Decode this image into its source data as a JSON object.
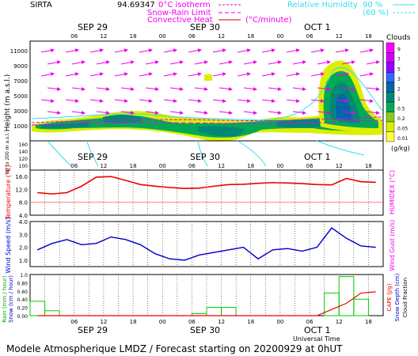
{
  "header": {
    "site": "SIRTA",
    "coords": "94.69347",
    "legend_isotherm": "0°C isotherm",
    "legend_snowrain": "Snow-Rain Limit",
    "legend_convective": "Convective Heat",
    "convective_unit": "(°C/minute)",
    "legend_rh": "Relative Humidity",
    "rh_high": "90 %",
    "rh_low": "(60 %)"
  },
  "dates": [
    "SEP 29",
    "SEP 30",
    "OCT 1"
  ],
  "hour_ticks": [
    "06",
    "12",
    "18",
    "00",
    "06",
    "12",
    "18",
    "00",
    "06",
    "12",
    "18"
  ],
  "clouds_scale": {
    "title": "Clouds",
    "unit": "(g/kg)",
    "levels": [
      "9",
      "7",
      "5",
      "3",
      "2",
      "1",
      "0.5",
      "0.2",
      "0.05",
      "0.01"
    ],
    "colors": [
      "#ff00ff",
      "#cc00ff",
      "#9900ff",
      "#3366ff",
      "#0066aa",
      "#008877",
      "#00aa55",
      "#88cc22",
      "#ddee00",
      "#ffff44"
    ]
  },
  "panel_labels": {
    "height": "Height (m a.s.l.)",
    "upto": "Up to 200 m a.s.l.",
    "temperature": "Temperature (°C)",
    "humidex": "HUMIDEX (°C)",
    "windspeed": "Wind Speed (m/s)",
    "windgust": "Wind Gust (m/s)",
    "rain": "Rain (mm / hour)",
    "snow": "Snow (cm / hour)",
    "cape": "CAPE (J/g)",
    "snowdepth": "Snow Depth (cm)",
    "cloudfrac": "Cloud Fraction",
    "universal_time": "Universal Time"
  },
  "footer": "Modele Atmospherique LMDZ / Forecast starting on 20200929 at 0hUT",
  "chart_data": [
    {
      "type": "heatmap",
      "name": "cloud-height",
      "ylabel": "Height (m a.s.l.)",
      "yticks_upper": [
        "11000",
        "9000",
        "7000",
        "5000",
        "3000",
        "1000"
      ],
      "yticks_lower": [
        "160",
        "140",
        "120",
        "100"
      ]
    },
    {
      "type": "line",
      "name": "temperature",
      "ylabel": "Temperature (°C)",
      "ylim": [
        4,
        18
      ],
      "yticks": [
        "16.0",
        "12.0",
        "8.0",
        "4.0"
      ],
      "x_hours": [
        0,
        3,
        6,
        9,
        12,
        15,
        18,
        21,
        24,
        27,
        30,
        33,
        36,
        39,
        42,
        45,
        48,
        51,
        54,
        57,
        60,
        63,
        66,
        69
      ],
      "series": [
        {
          "values": [
            11.0,
            10.6,
            11.0,
            13.0,
            15.8,
            16.0,
            14.8,
            13.5,
            13.0,
            12.6,
            12.3,
            12.4,
            13.0,
            13.5,
            13.6,
            13.9,
            14.1,
            14.0,
            13.8,
            13.5,
            13.4,
            15.4,
            14.4,
            14.2
          ]
        }
      ]
    },
    {
      "type": "line",
      "name": "wind",
      "ylabel": "Wind Speed (m/s)",
      "ylim": [
        0.5,
        4.0
      ],
      "yticks": [
        "4.0",
        "3.0",
        "2.0",
        "1.0"
      ],
      "x_hours": [
        0,
        3,
        6,
        9,
        12,
        15,
        18,
        21,
        24,
        27,
        30,
        33,
        36,
        39,
        42,
        45,
        48,
        51,
        54,
        57,
        60,
        63,
        66,
        69
      ],
      "series": [
        {
          "values": [
            1.8,
            2.3,
            2.6,
            2.2,
            2.3,
            2.8,
            2.6,
            2.2,
            1.5,
            1.1,
            1.0,
            1.4,
            1.6,
            1.8,
            2.0,
            1.1,
            1.8,
            1.9,
            1.7,
            2.0,
            3.5,
            2.7,
            2.1,
            2.0
          ]
        }
      ]
    },
    {
      "type": "bar",
      "name": "precipitation",
      "ylabel": "Rain (mm / hour)",
      "ylim": [
        0,
        1.0
      ],
      "yticks": [
        "1.0",
        "0.80",
        "0.60",
        "0.40",
        "0.20",
        "0.00"
      ],
      "x_hours": [
        0,
        3,
        6,
        9,
        12,
        15,
        18,
        21,
        24,
        27,
        30,
        33,
        36,
        39,
        42,
        45,
        48,
        51,
        54,
        57,
        60,
        63,
        66,
        69
      ],
      "series": [
        {
          "name": "Rain",
          "values": [
            0.35,
            0.12,
            0,
            0,
            0,
            0,
            0,
            0,
            0,
            0,
            0,
            0.05,
            0.2,
            0.2,
            0,
            0,
            0,
            0,
            0,
            0,
            0.55,
            0.95,
            0.4,
            0
          ]
        },
        {
          "name": "CAPE",
          "values": [
            0,
            0,
            0,
            0,
            0,
            0,
            0,
            0,
            0,
            0,
            0,
            0,
            0,
            0,
            0,
            0,
            0,
            0,
            0,
            0,
            0.15,
            0.3,
            0.55,
            0.58
          ]
        }
      ]
    }
  ]
}
